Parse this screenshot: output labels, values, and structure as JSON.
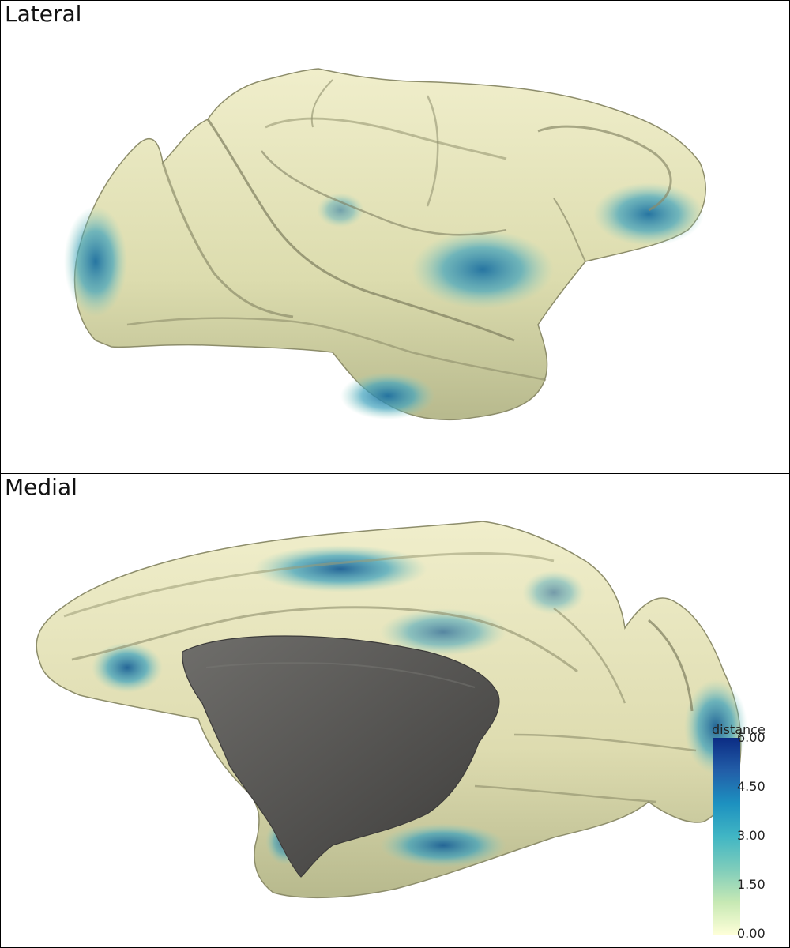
{
  "panels": {
    "lateral": {
      "title": "Lateral"
    },
    "medial": {
      "title": "Medial"
    }
  },
  "colorbar": {
    "title": "distance",
    "range": [
      0,
      6
    ],
    "ticks": [
      "6.00",
      "4.50",
      "3.00",
      "1.50",
      "0.00"
    ],
    "colors": [
      "#ffffd9",
      "#c7e9b4",
      "#7fcdbb",
      "#41b6c4",
      "#1d91c0",
      "#225ea8",
      "#0c2c84"
    ]
  },
  "colors": {
    "surface_base": "#e5e3b6",
    "surface_shadow": "#8f8f70",
    "medial_wall": "#5f5e5c",
    "frame": "#000000"
  }
}
